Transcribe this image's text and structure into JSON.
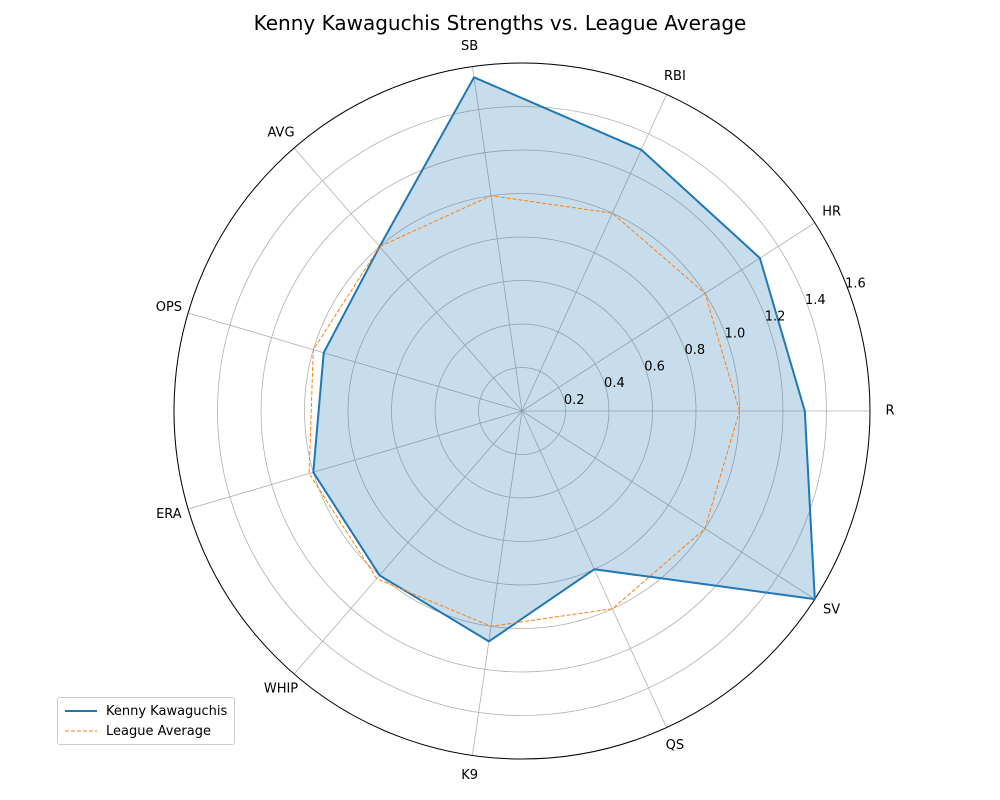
{
  "chart_data": {
    "type": "radar",
    "title": "Kenny Kawaguchis Strengths vs. League Average",
    "categories": [
      "R",
      "HR",
      "RBI",
      "SB",
      "AVG",
      "OPS",
      "ERA",
      "WHIP",
      "K9",
      "QS",
      "SV"
    ],
    "radial_ticks": [
      "0.2",
      "0.4",
      "0.6",
      "0.8",
      "1.0",
      "1.2",
      "1.4",
      "1.6"
    ],
    "rlim": [
      0,
      1.6
    ],
    "grid": true,
    "legend_position": "bottom-left",
    "series": [
      {
        "name": "Kenny Kawaguchis",
        "values": [
          1.3,
          1.3,
          1.32,
          1.55,
          1.0,
          0.95,
          1.0,
          1.0,
          1.07,
          0.8,
          1.6
        ],
        "color": "#1f77b4",
        "style": "solid",
        "fill": true
      },
      {
        "name": "League Average",
        "values": [
          1.0,
          1.0,
          1.0,
          1.0,
          1.0,
          1.0,
          1.02,
          1.02,
          1.0,
          1.0,
          1.0
        ],
        "color": "#ff7f0e",
        "style": "dashed",
        "fill": false
      }
    ]
  }
}
